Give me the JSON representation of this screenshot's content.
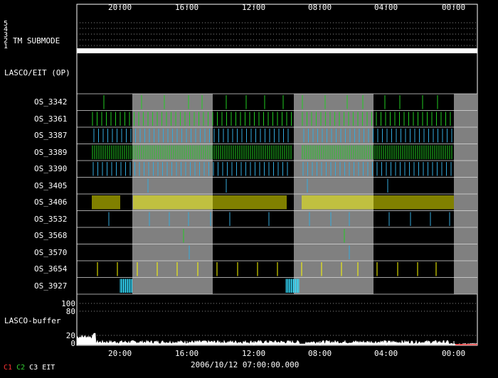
{
  "time_axis": {
    "top_ticks": [
      "20:00",
      "16:00",
      "12:00",
      "08:00",
      "04:00",
      "00:00"
    ],
    "bottom_ticks": [
      "20:00",
      "16:00",
      "12:00",
      "08:00",
      "04:00",
      "00:00"
    ],
    "date_label": "2006/10/12 07:00:00.000"
  },
  "tm_submode": {
    "label": "TM SUBMODE",
    "levels": [
      "5",
      "4",
      "3",
      "2",
      "1"
    ]
  },
  "lasco_eit_label": "LASCO/EIT (OP)",
  "os_rows": [
    {
      "name": "OS_3342",
      "color": "#22cc22"
    },
    {
      "name": "OS_3361",
      "color": "#22cc22"
    },
    {
      "name": "OS_3387",
      "color": "#33aadd"
    },
    {
      "name": "OS_3389",
      "color": "#22cc22"
    },
    {
      "name": "OS_3390",
      "color": "#33aadd"
    },
    {
      "name": "OS_3405",
      "color": "#33aadd"
    },
    {
      "name": "OS_3406",
      "color": "#ffff00"
    },
    {
      "name": "OS_3532",
      "color": "#33aadd"
    },
    {
      "name": "OS_3568",
      "color": "#22cc22"
    },
    {
      "name": "OS_3570",
      "color": "#33aadd"
    },
    {
      "name": "OS_3654",
      "color": "#ffff00"
    },
    {
      "name": "OS_3927",
      "color": "#33ddff"
    }
  ],
  "buffer": {
    "label": "LASCO-buffer",
    "y_ticks": [
      "100",
      "80",
      "20",
      "0"
    ]
  },
  "legend": [
    {
      "text": "C1",
      "color": "#ff3333"
    },
    {
      "text": "C2",
      "color": "#33cc33"
    },
    {
      "text": "C3",
      "color": "#ffffff"
    },
    {
      "text": "EIT",
      "color": "#ffffff"
    }
  ]
}
